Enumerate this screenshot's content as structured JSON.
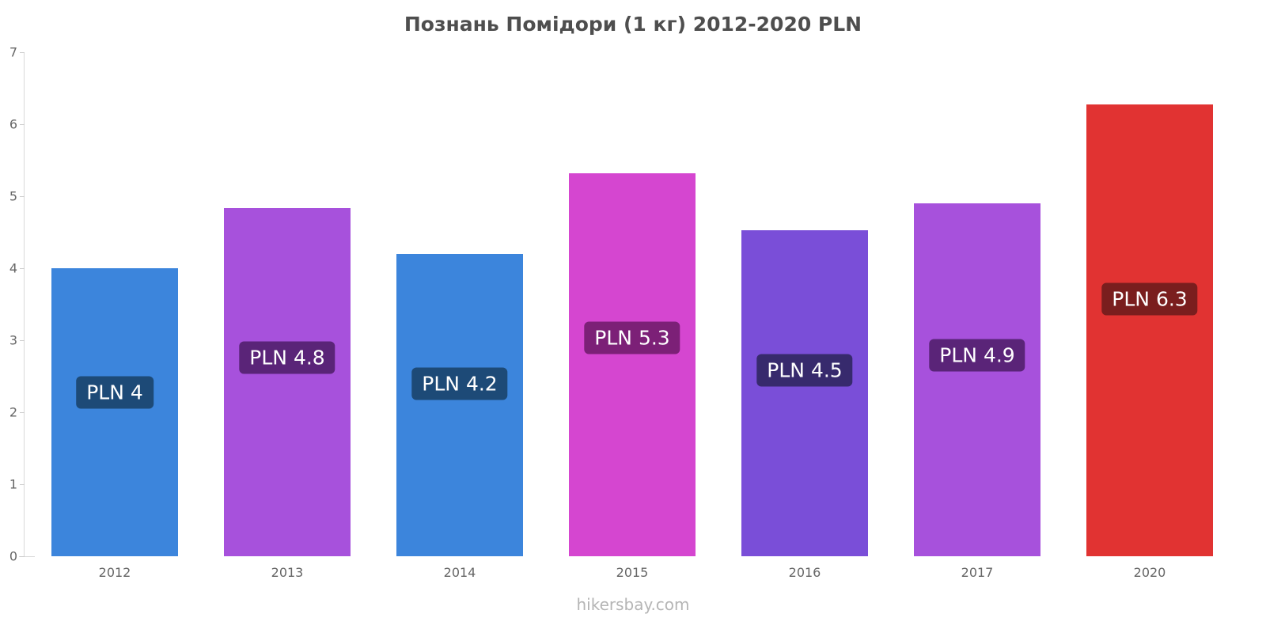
{
  "title": "Познань Помідори (1 кг) 2012-2020 PLN",
  "source": "hikersbay.com",
  "chart_data": {
    "type": "bar",
    "title": "Познань Помідори (1 кг) 2012-2020 PLN",
    "categories": [
      "2012",
      "2013",
      "2014",
      "2015",
      "2016",
      "2017",
      "2020"
    ],
    "values": [
      4,
      4.8,
      4.2,
      5.3,
      4.5,
      4.9,
      6.3
    ],
    "exact_values": [
      4.0,
      4.83,
      4.2,
      5.32,
      4.53,
      4.9,
      6.27
    ],
    "labels": [
      "PLN 4",
      "PLN 4.8",
      "PLN 4.2",
      "PLN 5.3",
      "PLN 4.5",
      "PLN 4.9",
      "PLN 6.3"
    ],
    "bar_colors": [
      "#3c85dc",
      "#a751dc",
      "#3c85dc",
      "#d546d0",
      "#7a4ed8",
      "#a751dc",
      "#e13332"
    ],
    "label_bg_colors": [
      "#1d4a77",
      "#5a2478",
      "#1d4a77",
      "#7c2077",
      "#372a6d",
      "#5a2478",
      "#7a1e1e"
    ],
    "xlabel": "",
    "ylabel": "",
    "ylim": [
      0,
      7
    ],
    "yticks": [
      0,
      1,
      2,
      3,
      4,
      5,
      6,
      7
    ],
    "grid": false,
    "legend": false,
    "currency": "PLN"
  }
}
